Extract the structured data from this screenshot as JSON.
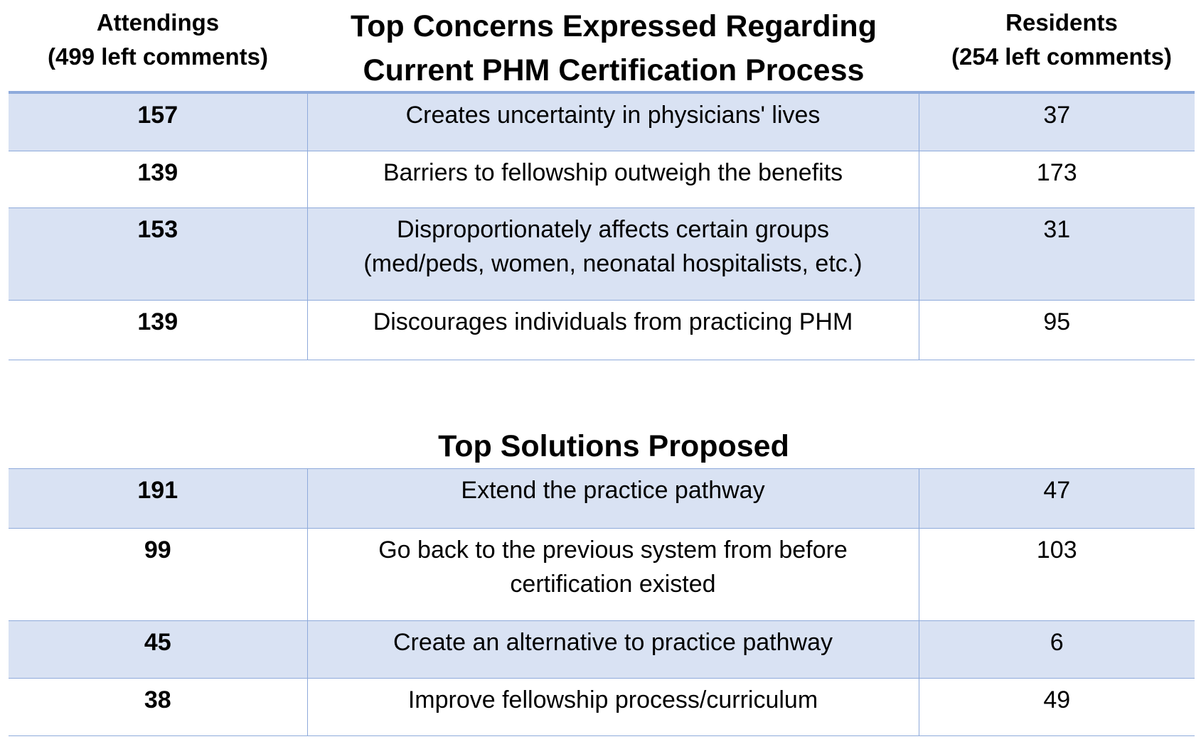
{
  "colors": {
    "band_fill": "#d9e2f3",
    "rule": "#8eaadb"
  },
  "headers": {
    "attendings_title": "Attendings",
    "attendings_sub": "(499 left comments)",
    "residents_title": "Residents",
    "residents_sub": "(254 left comments)"
  },
  "concerns": {
    "title_line1": "Top Concerns Expressed Regarding",
    "title_line2": "Current PHM Certification Process",
    "rows": [
      {
        "attendings": "157",
        "lines": [
          "Creates uncertainty in physicians' lives"
        ],
        "residents": "37",
        "shaded": true
      },
      {
        "attendings": "139",
        "lines": [
          "Barriers to fellowship outweigh the benefits"
        ],
        "residents": "173",
        "shaded": false
      },
      {
        "attendings": "153",
        "lines": [
          "Disproportionately affects certain groups",
          "(med/peds, women, neonatal hospitalists, etc.)"
        ],
        "residents": "31",
        "shaded": true
      },
      {
        "attendings": "139",
        "lines": [
          "Discourages individuals from practicing PHM"
        ],
        "residents": "95",
        "shaded": false
      }
    ]
  },
  "solutions": {
    "title": "Top Solutions Proposed",
    "rows": [
      {
        "attendings": "191",
        "lines": [
          "Extend the practice pathway"
        ],
        "residents": "47",
        "shaded": true
      },
      {
        "attendings": "99",
        "lines": [
          "Go back to the previous system from before",
          "certification existed"
        ],
        "residents": "103",
        "shaded": false
      },
      {
        "attendings": "45",
        "lines": [
          "Create an alternative to practice pathway"
        ],
        "residents": "6",
        "shaded": true
      },
      {
        "attendings": "38",
        "lines": [
          "Improve fellowship process/curriculum"
        ],
        "residents": "49",
        "shaded": false
      }
    ]
  }
}
